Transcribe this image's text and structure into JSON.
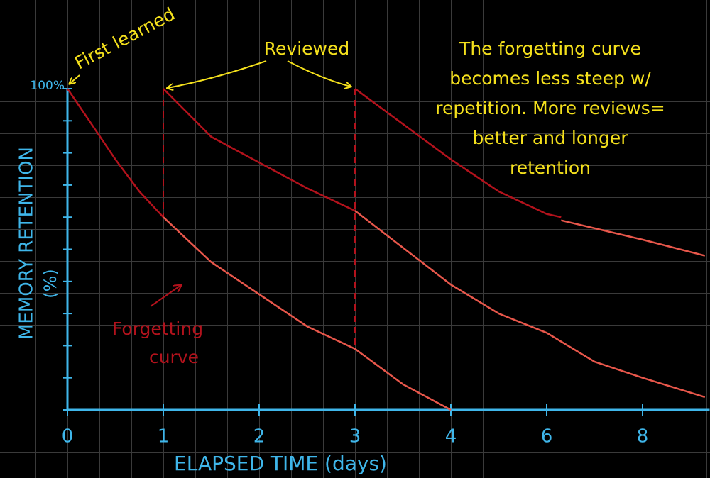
{
  "chart_data": {
    "type": "line",
    "xlabel": "ELAPSED TIME (days)",
    "ylabel": "MEMORY RETENTION",
    "ylabel_unit": "(%)",
    "xlim": [
      0,
      9.4
    ],
    "xticks": [
      0,
      1,
      2,
      3,
      4,
      6,
      8
    ],
    "ylim": [
      0,
      100
    ],
    "yticks": [
      {
        "value": 100,
        "label": "100%"
      }
    ],
    "yminor_ticks": [
      0,
      10,
      20,
      30,
      40,
      50,
      60,
      70,
      80,
      90
    ],
    "axis_color": "#3fb6ea",
    "series": [
      {
        "color": "#b3121c",
        "x": [
          0,
          0.25,
          0.5,
          0.75,
          1
        ],
        "values": [
          100,
          89,
          78,
          68,
          60
        ]
      },
      {
        "color": "#e8574b",
        "x": [
          1,
          1.5,
          2,
          2.5,
          3,
          3.5,
          4
        ],
        "values": [
          60,
          46,
          36,
          26,
          19,
          8,
          0
        ]
      },
      {
        "color": "#b3121c",
        "x": [
          1,
          1.5,
          2,
          2.5,
          3
        ],
        "values": [
          100,
          85,
          77,
          69,
          62
        ]
      },
      {
        "color": "#e8574b",
        "x": [
          3,
          4,
          5,
          6,
          7,
          8,
          9.3
        ],
        "values": [
          62,
          39,
          30,
          24,
          15,
          10,
          4
        ]
      },
      {
        "color": "#b3121c",
        "x": [
          3,
          4,
          5,
          6,
          6.3
        ],
        "values": [
          100,
          78,
          68,
          61,
          60
        ]
      },
      {
        "color": "#e8574b",
        "x": [
          6.3,
          8,
          9.3
        ],
        "values": [
          59,
          53,
          48
        ]
      }
    ],
    "annotations": {
      "first_learned": "First learned",
      "reviewed": "Reviewed",
      "note": [
        "The forgetting curve",
        "becomes less steep w/",
        "repetition. More reviews=",
        "better and longer",
        "retention"
      ],
      "forgetting_curve": [
        "Forgetting",
        "curve"
      ]
    }
  }
}
